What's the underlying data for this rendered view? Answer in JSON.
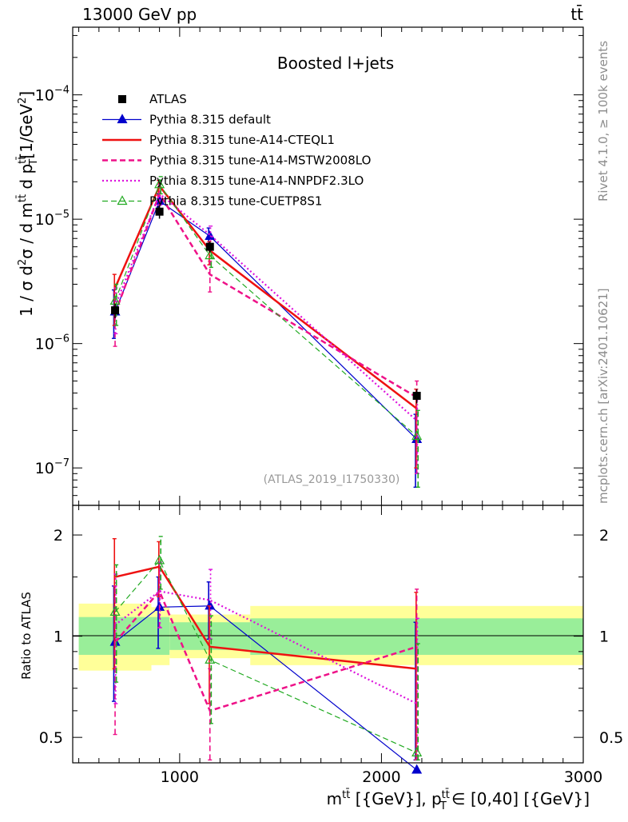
{
  "header": {
    "left": "13000 GeV pp",
    "right": "tt̄"
  },
  "side_labels": {
    "top": "Rivet 4.1.0, ≥ 100k events",
    "bottom": "mcplots.cern.ch [arXiv:2401.10621]"
  },
  "chart_data": [
    {
      "type": "line",
      "title": "Boosted l+jets",
      "watermark": "(ATLAS_2019_I1750330)",
      "xlabel": "m^{tt̄} [{GeV}], p_T^{tt̄} ∈ [0,40] [{GeV}]",
      "ylabel": "1 / σ d²σ / d m^{tt̄} d p_T^{tt̄} [1/GeV²]",
      "yscale": "log",
      "xlim": [
        470,
        3000
      ],
      "ylim": [
        5e-08,
        0.00035
      ],
      "x_ticks": [
        1000,
        2000,
        3000
      ],
      "y_ticks": [
        {
          "value": 1e-07,
          "label": "10⁻⁷"
        },
        {
          "value": 1e-06,
          "label": "10⁻⁶"
        },
        {
          "value": 1e-05,
          "label": "10⁻⁵"
        },
        {
          "value": 0.0001,
          "label": "10⁻⁴"
        }
      ],
      "x": [
        680,
        900,
        1150,
        2175
      ],
      "data": {
        "name": "ATLAS",
        "x_edges": [
          [
            500,
            860
          ],
          [
            860,
            950
          ],
          [
            950,
            1350
          ],
          [
            1350,
            3000
          ]
        ],
        "values": [
          1.85e-06,
          1.15e-05,
          6e-06,
          3.8e-07
        ],
        "errors": [
          2.5e-07,
          1.4e-06,
          6e-07,
          5e-08
        ]
      },
      "series": [
        {
          "name": "Pythia 8.315 default",
          "color": "#0000cc",
          "dash": "solid",
          "marker": "triangle-filled",
          "values": [
            1.8e-06,
            1.4e-05,
            7.3e-06,
            1.7e-07
          ],
          "err_lo": [
            7e-07,
            2e-06,
            1.2e-06,
            1e-07
          ],
          "err_hi": [
            9e-07,
            2e-06,
            1.2e-06,
            1e-07
          ]
        },
        {
          "name": "Pythia 8.315 tune-A14-CTEQL1",
          "color": "#ee1111",
          "dash": "solid",
          "marker": "none",
          "values": [
            2.8e-06,
            1.85e-05,
            5.6e-06,
            3e-07
          ],
          "err_lo": [
            1.4e-06,
            3e-06,
            1.3e-06,
            2e-07
          ],
          "err_hi": [
            8e-07,
            2e-06,
            1e-06,
            1.3e-07
          ]
        },
        {
          "name": "Pythia 8.315 tune-A14-MSTW2008LO",
          "color": "#ee1188",
          "dash": "dashed",
          "marker": "none",
          "values": [
            1.75e-06,
            1.6e-05,
            3.6e-06,
            3.7e-07
          ],
          "err_lo": [
            8e-07,
            3e-06,
            1e-06,
            2.8e-07
          ],
          "err_hi": [
            8e-07,
            3e-06,
            1e-06,
            1.3e-07
          ]
        },
        {
          "name": "Pythia 8.315 tune-A14-NNPDF2.3LO",
          "color": "#dd11dd",
          "dash": "dotted",
          "marker": "none",
          "values": [
            2e-06,
            1.6e-05,
            7.5e-06,
            2.4e-07
          ],
          "err_lo": [
            8e-07,
            3e-06,
            1.3e-06,
            1.5e-07
          ],
          "err_hi": [
            8e-07,
            3e-06,
            1.3e-06,
            1.5e-07
          ]
        },
        {
          "name": "Pythia 8.315 tune-CUETP8S1",
          "color": "#22aa22",
          "dash": "dashed",
          "marker": "triangle-open",
          "values": [
            2.2e-06,
            1.9e-05,
            5.1e-06,
            1.8e-07
          ],
          "err_lo": [
            8e-07,
            3e-06,
            1e-06,
            1.1e-07
          ],
          "err_hi": [
            8e-07,
            3e-06,
            1e-06,
            1.1e-07
          ]
        }
      ]
    },
    {
      "type": "line",
      "title": "",
      "xlabel": "m^{tt̄} [{GeV}], p_T^{tt̄} ∈ [0,40] [{GeV}]",
      "ylabel": "Ratio to ATLAS",
      "yscale": "log",
      "xlim": [
        470,
        3000
      ],
      "ylim": [
        0.42,
        2.45
      ],
      "y_ticks": [
        {
          "value": 0.5,
          "label": "0.5"
        },
        {
          "value": 1,
          "label": "1"
        },
        {
          "value": 2,
          "label": "2"
        }
      ],
      "x": [
        680,
        900,
        1150,
        2175
      ],
      "bands": [
        {
          "x0": 500,
          "x1": 860,
          "inner": [
            0.88,
            1.14
          ],
          "outer": [
            0.79,
            1.25
          ]
        },
        {
          "x0": 860,
          "x1": 950,
          "inner": [
            0.88,
            1.14
          ],
          "outer": [
            0.82,
            1.22
          ]
        },
        {
          "x0": 950,
          "x1": 1350,
          "inner": [
            0.91,
            1.1
          ],
          "outer": [
            0.86,
            1.16
          ]
        },
        {
          "x0": 1350,
          "x1": 3000,
          "inner": [
            0.88,
            1.13
          ],
          "outer": [
            0.82,
            1.23
          ]
        }
      ],
      "series": [
        {
          "name": "Pythia 8.315 default",
          "values": [
            0.96,
            1.22,
            1.23,
            0.4
          ],
          "err_lo": [
            0.32,
            0.3,
            0.25,
            0.2
          ],
          "err_hi": [
            0.45,
            0.28,
            0.22,
            0.7
          ]
        },
        {
          "name": "Pythia 8.315 tune-A14-CTEQL1",
          "values": [
            1.5,
            1.61,
            0.93,
            0.8
          ],
          "err_lo": [
            0.7,
            0.3,
            0.3,
            0.4
          ],
          "err_hi": [
            0.45,
            0.3,
            0.3,
            0.55
          ]
        },
        {
          "name": "Pythia 8.315 tune-A14-MSTW2008LO",
          "values": [
            0.96,
            1.36,
            0.6,
            0.93
          ],
          "err_lo": [
            0.45,
            0.3,
            0.2,
            0.5
          ],
          "err_hi": [
            0.45,
            0.3,
            0.2,
            0.45
          ]
        },
        {
          "name": "Pythia 8.315 tune-A14-NNPDF2.3LO",
          "values": [
            1.08,
            1.36,
            1.28,
            0.63
          ],
          "err_lo": [
            0.45,
            0.3,
            0.3,
            0.4
          ],
          "err_hi": [
            0.45,
            0.3,
            0.3,
            0.5
          ]
        },
        {
          "name": "Pythia 8.315 tune-CUETP8S1",
          "values": [
            1.18,
            1.68,
            0.85,
            0.45
          ],
          "err_lo": [
            0.45,
            0.3,
            0.3,
            0.2
          ],
          "err_hi": [
            0.45,
            0.3,
            0.3,
            0.5
          ]
        }
      ]
    }
  ]
}
